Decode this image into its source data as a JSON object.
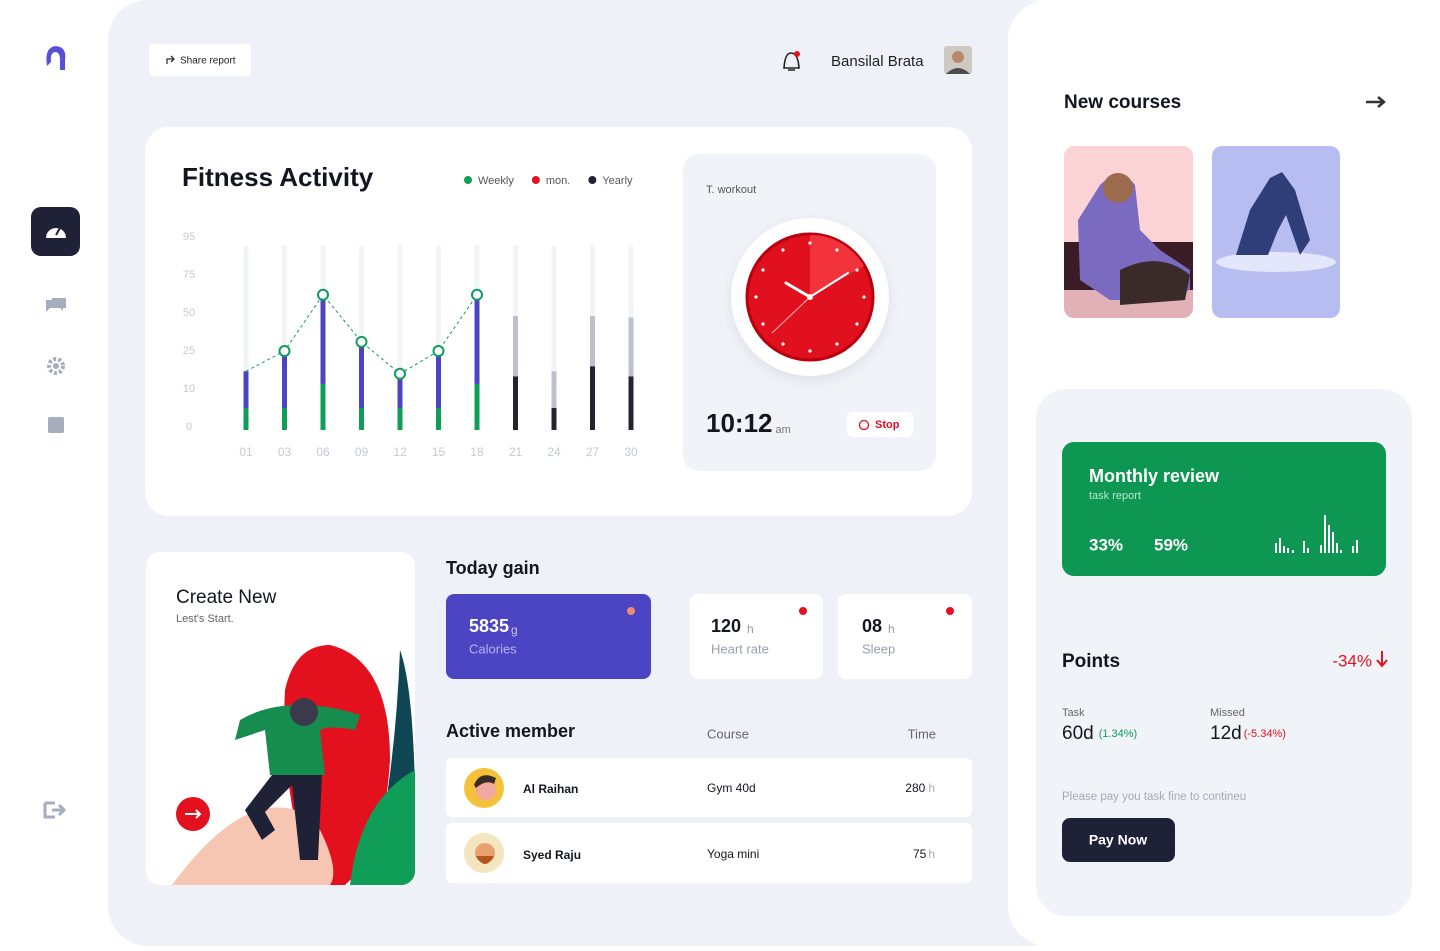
{
  "header": {
    "share_button": "Share report",
    "user_name": "Bansilal Brata"
  },
  "fitness_activity": {
    "title": "Fitness Activity",
    "legend": [
      {
        "label": "Weekly",
        "color": "#0f9d58"
      },
      {
        "label": "mon.",
        "color": "#e3101e"
      },
      {
        "label": "Yearly",
        "color": "#1f2236"
      }
    ],
    "categories": [
      "01",
      "03",
      "06",
      "09",
      "12",
      "15",
      "18",
      "21",
      "24",
      "27",
      "30"
    ],
    "yticks": [
      0,
      10,
      25,
      50,
      75,
      95
    ],
    "segments": [
      {
        "color": "#0f9d58",
        "values": [
          5,
          5,
          12,
          5,
          5,
          5,
          12,
          null,
          null,
          null,
          null
        ]
      },
      {
        "color": "#4b45c4",
        "values": [
          12,
          20,
          50,
          26,
          11,
          20,
          50,
          null,
          null,
          null,
          null
        ]
      },
      {
        "color": "#24232f",
        "values": [
          null,
          null,
          null,
          null,
          null,
          null,
          null,
          15,
          5,
          19,
          15
        ]
      },
      {
        "color": "#bfbfcf",
        "values": [
          null,
          null,
          null,
          null,
          null,
          null,
          null,
          33,
          12,
          29,
          32
        ]
      }
    ]
  },
  "workout": {
    "label": "T. workout",
    "time": "10:12",
    "period": "am",
    "stop_button": "Stop"
  },
  "create_new": {
    "title": "Create New",
    "subtitle": "Lest's Start."
  },
  "today_gain": {
    "title": "Today gain",
    "cards": [
      {
        "value": "5835",
        "unit": "g",
        "label": "Calories"
      },
      {
        "value": "120",
        "unit": "h",
        "label": "Heart rate"
      },
      {
        "value": "08",
        "unit": "h",
        "label": "Sleep"
      }
    ]
  },
  "active_member": {
    "title": "Active member",
    "columns": [
      "Course",
      "Time"
    ],
    "rows": [
      {
        "name": "Al Raihan",
        "course": "Gym 40d",
        "time": "280",
        "unit": "h"
      },
      {
        "name": "Syed Raju",
        "course": "Yoga mini",
        "time": "75",
        "unit": "h"
      }
    ]
  },
  "new_courses": {
    "title": "New courses"
  },
  "monthly_review": {
    "title": "Monthly review",
    "subtitle": "task report",
    "stats": [
      "33%",
      "59%"
    ]
  },
  "points": {
    "title": "Points",
    "change": "-34%",
    "task_label": "Task",
    "task_value": "60d",
    "task_change": "(1.34%)",
    "missed_label": "Missed",
    "missed_value": "12d",
    "missed_change": "(-5.34%)",
    "note": "Please pay you task fine to contineu",
    "pay_button": "Pay Now"
  }
}
